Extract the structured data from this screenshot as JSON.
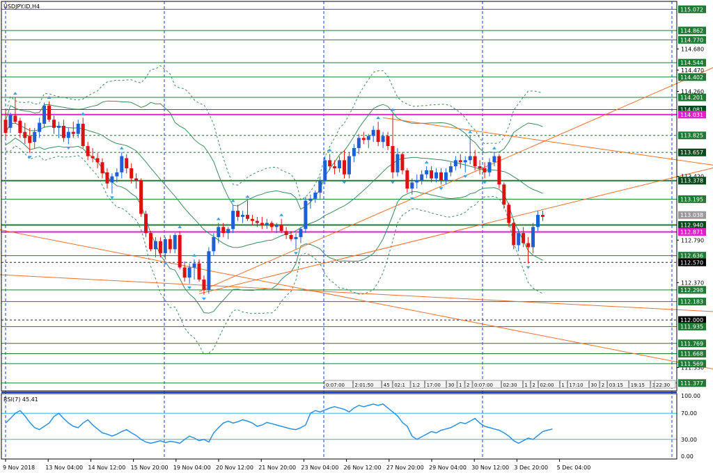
{
  "window": {
    "symbol_label": "USDJPY.ID,H4",
    "rsi_label": "RSI(7) 45.41"
  },
  "colors": {
    "bull": "#1f5fd6",
    "bear": "#dd1111",
    "hline_green": "#1f7a34",
    "hline_magenta": "#e020c8",
    "trend_orange": "#f07028",
    "rsi_line": "#2a90e0",
    "rsi_level": "#35b5e0",
    "band": "#3a8c5a",
    "grid_vertical": "#1a3fd0",
    "fractal": "#3aa0e8"
  },
  "price_axis": {
    "min": 111.3,
    "max": 115.15,
    "ticks": [
      "115.072",
      "114.862",
      "114.770",
      "114.680",
      "114.544",
      "114.470",
      "114.402",
      "114.260",
      "114.201",
      "114.081",
      "114.031",
      "113.825",
      "113.657",
      "113.420",
      "113.378",
      "113.195",
      "113.038",
      "112.940",
      "112.871",
      "112.790",
      "112.636",
      "112.570",
      "112.370",
      "112.298",
      "112.183",
      "112.000",
      "111.935",
      "111.769",
      "111.668",
      "111.569",
      "111.530",
      "111.377"
    ],
    "boxed_labels": [
      {
        "text": "115.072",
        "style": "green"
      },
      {
        "text": "114.862",
        "style": "green"
      },
      {
        "text": "114.770",
        "style": "green"
      },
      {
        "text": "114.544",
        "style": "green"
      },
      {
        "text": "114.402",
        "style": "green"
      },
      {
        "text": "114.201",
        "style": "green"
      },
      {
        "text": "114.081",
        "style": "dark"
      },
      {
        "text": "114.031",
        "style": "magenta"
      },
      {
        "text": "113.825",
        "style": "green"
      },
      {
        "text": "113.657",
        "style": "dark"
      },
      {
        "text": "113.378",
        "style": "dark"
      },
      {
        "text": "113.195",
        "style": "green"
      },
      {
        "text": "113.038",
        "style": "grey"
      },
      {
        "text": "112.940",
        "style": "dark"
      },
      {
        "text": "112.871",
        "style": "magenta"
      },
      {
        "text": "112.636",
        "style": "green"
      },
      {
        "text": "112.570",
        "style": "black"
      },
      {
        "text": "112.298",
        "style": "green"
      },
      {
        "text": "112.183",
        "style": "green"
      },
      {
        "text": "112.000",
        "style": "black"
      },
      {
        "text": "111.935",
        "style": "green"
      },
      {
        "text": "111.769",
        "style": "green"
      },
      {
        "text": "111.668",
        "style": "green"
      },
      {
        "text": "111.569",
        "style": "green"
      },
      {
        "text": "111.377",
        "style": "green"
      }
    ],
    "plain_labels": [
      "114.680",
      "114.470",
      "114.260",
      "113.420",
      "112.790",
      "112.370",
      "111.530"
    ]
  },
  "time_axis": [
    "9 Nov 2018",
    "13 Nov 04:00",
    "14 Nov 12:00",
    "15 Nov 20:00",
    "19 Nov 04:00",
    "20 Nov 12:00",
    "21 Nov 20:00",
    "23 Nov 04:00",
    "26 Nov 12:00",
    "27 Nov 20:00",
    "29 Nov 04:00",
    "30 Nov 12:00",
    "3 Dec 20:00",
    "5 Dec 04:00"
  ],
  "rsi_axis": [
    "100.00",
    "70.00",
    "30.00",
    "0.00"
  ],
  "session_boxes": [
    "0:07:00",
    "2:01:50",
    "45",
    "02:1",
    "1:2",
    "17:00",
    "30",
    "1",
    "2",
    "0:07:00",
    "02:30",
    "1",
    "2",
    "02:00",
    "1",
    "17:10",
    "30",
    "2",
    "03:15",
    "19:15",
    "37",
    "22:30"
  ],
  "chart_data": {
    "type": "candlestick",
    "title": "USDJPY.ID,H4",
    "ylim": [
      111.3,
      115.15
    ],
    "x_labels": [
      "9 Nov 2018",
      "13 Nov 04:00",
      "14 Nov 12:00",
      "15 Nov 20:00",
      "19 Nov 04:00",
      "20 Nov 12:00",
      "21 Nov 20:00",
      "23 Nov 04:00",
      "26 Nov 12:00",
      "27 Nov 20:00",
      "29 Nov 04:00",
      "30 Nov 12:00",
      "3 Dec 20:00",
      "5 Dec 04:00"
    ],
    "candles": [
      {
        "o": 113.98,
        "h": 114.08,
        "l": 113.8,
        "c": 113.85
      },
      {
        "o": 113.9,
        "h": 114.05,
        "l": 113.85,
        "c": 114.03
      },
      {
        "o": 114.02,
        "h": 114.2,
        "l": 113.94,
        "c": 113.96
      },
      {
        "o": 113.97,
        "h": 114.0,
        "l": 113.8,
        "c": 113.85
      },
      {
        "o": 113.86,
        "h": 113.95,
        "l": 113.74,
        "c": 113.8
      },
      {
        "o": 113.82,
        "h": 113.9,
        "l": 113.65,
        "c": 113.75
      },
      {
        "o": 113.76,
        "h": 113.9,
        "l": 113.7,
        "c": 113.86
      },
      {
        "o": 113.86,
        "h": 114.0,
        "l": 113.8,
        "c": 113.95
      },
      {
        "o": 113.94,
        "h": 114.15,
        "l": 113.9,
        "c": 114.12
      },
      {
        "o": 114.12,
        "h": 114.16,
        "l": 113.96,
        "c": 113.98
      },
      {
        "o": 113.98,
        "h": 114.02,
        "l": 113.84,
        "c": 113.9
      },
      {
        "o": 113.9,
        "h": 113.96,
        "l": 113.8,
        "c": 113.92
      },
      {
        "o": 113.92,
        "h": 113.98,
        "l": 113.76,
        "c": 113.8
      },
      {
        "o": 113.8,
        "h": 113.9,
        "l": 113.74,
        "c": 113.86
      },
      {
        "o": 113.86,
        "h": 113.96,
        "l": 113.8,
        "c": 113.84
      },
      {
        "o": 113.84,
        "h": 113.98,
        "l": 113.8,
        "c": 113.94
      },
      {
        "o": 113.94,
        "h": 114.0,
        "l": 113.7,
        "c": 113.72
      },
      {
        "o": 113.72,
        "h": 113.76,
        "l": 113.58,
        "c": 113.62
      },
      {
        "o": 113.62,
        "h": 113.7,
        "l": 113.56,
        "c": 113.6
      },
      {
        "o": 113.6,
        "h": 113.65,
        "l": 113.5,
        "c": 113.56
      },
      {
        "o": 113.56,
        "h": 113.6,
        "l": 113.4,
        "c": 113.45
      },
      {
        "o": 113.46,
        "h": 113.5,
        "l": 113.3,
        "c": 113.35
      },
      {
        "o": 113.36,
        "h": 113.45,
        "l": 113.25,
        "c": 113.42
      },
      {
        "o": 113.42,
        "h": 113.5,
        "l": 113.36,
        "c": 113.46
      },
      {
        "o": 113.46,
        "h": 113.66,
        "l": 113.4,
        "c": 113.62
      },
      {
        "o": 113.6,
        "h": 113.64,
        "l": 113.45,
        "c": 113.5
      },
      {
        "o": 113.5,
        "h": 113.55,
        "l": 113.35,
        "c": 113.4
      },
      {
        "o": 113.4,
        "h": 113.45,
        "l": 113.3,
        "c": 113.38
      },
      {
        "o": 113.38,
        "h": 113.4,
        "l": 113.02,
        "c": 113.05
      },
      {
        "o": 113.05,
        "h": 113.08,
        "l": 112.82,
        "c": 112.86
      },
      {
        "o": 112.86,
        "h": 112.88,
        "l": 112.68,
        "c": 112.7
      },
      {
        "o": 112.7,
        "h": 112.82,
        "l": 112.62,
        "c": 112.78
      },
      {
        "o": 112.78,
        "h": 112.82,
        "l": 112.62,
        "c": 112.66
      },
      {
        "o": 112.66,
        "h": 112.82,
        "l": 112.6,
        "c": 112.8
      },
      {
        "o": 112.8,
        "h": 112.84,
        "l": 112.66,
        "c": 112.7
      },
      {
        "o": 112.7,
        "h": 112.86,
        "l": 112.66,
        "c": 112.84
      },
      {
        "o": 112.84,
        "h": 112.88,
        "l": 112.5,
        "c": 112.52
      },
      {
        "o": 112.52,
        "h": 112.58,
        "l": 112.38,
        "c": 112.42
      },
      {
        "o": 112.42,
        "h": 112.56,
        "l": 112.36,
        "c": 112.52
      },
      {
        "o": 112.52,
        "h": 112.6,
        "l": 112.4,
        "c": 112.56
      },
      {
        "o": 112.56,
        "h": 112.6,
        "l": 112.38,
        "c": 112.4
      },
      {
        "o": 112.4,
        "h": 112.44,
        "l": 112.25,
        "c": 112.3
      },
      {
        "o": 112.3,
        "h": 112.72,
        "l": 112.26,
        "c": 112.68
      },
      {
        "o": 112.68,
        "h": 112.86,
        "l": 112.64,
        "c": 112.82
      },
      {
        "o": 112.82,
        "h": 112.96,
        "l": 112.76,
        "c": 112.92
      },
      {
        "o": 112.92,
        "h": 112.96,
        "l": 112.82,
        "c": 112.86
      },
      {
        "o": 112.86,
        "h": 112.92,
        "l": 112.8,
        "c": 112.9
      },
      {
        "o": 112.9,
        "h": 113.14,
        "l": 112.86,
        "c": 113.08
      },
      {
        "o": 113.08,
        "h": 113.14,
        "l": 112.98,
        "c": 113.02
      },
      {
        "o": 113.02,
        "h": 113.08,
        "l": 112.96,
        "c": 113.04
      },
      {
        "o": 113.04,
        "h": 113.18,
        "l": 112.98,
        "c": 113.0
      },
      {
        "o": 113.0,
        "h": 113.04,
        "l": 112.94,
        "c": 112.98
      },
      {
        "o": 112.98,
        "h": 113.02,
        "l": 112.92,
        "c": 112.96
      },
      {
        "o": 112.96,
        "h": 113.02,
        "l": 112.9,
        "c": 112.94
      },
      {
        "o": 112.94,
        "h": 113.0,
        "l": 112.9,
        "c": 112.96
      },
      {
        "o": 112.96,
        "h": 112.98,
        "l": 112.88,
        "c": 112.92
      },
      {
        "o": 112.92,
        "h": 112.96,
        "l": 112.86,
        "c": 112.94
      },
      {
        "o": 112.94,
        "h": 113.0,
        "l": 112.86,
        "c": 112.88
      },
      {
        "o": 112.88,
        "h": 112.92,
        "l": 112.8,
        "c": 112.84
      },
      {
        "o": 112.84,
        "h": 112.88,
        "l": 112.78,
        "c": 112.8
      },
      {
        "o": 112.8,
        "h": 112.86,
        "l": 112.7,
        "c": 112.82
      },
      {
        "o": 112.82,
        "h": 112.92,
        "l": 112.76,
        "c": 112.9
      },
      {
        "o": 112.9,
        "h": 113.22,
        "l": 112.86,
        "c": 113.18
      },
      {
        "o": 113.18,
        "h": 113.24,
        "l": 113.1,
        "c": 113.2
      },
      {
        "o": 113.2,
        "h": 113.28,
        "l": 113.16,
        "c": 113.26
      },
      {
        "o": 113.26,
        "h": 113.42,
        "l": 113.2,
        "c": 113.38
      },
      {
        "o": 113.38,
        "h": 113.62,
        "l": 113.34,
        "c": 113.58
      },
      {
        "o": 113.58,
        "h": 113.64,
        "l": 113.48,
        "c": 113.52
      },
      {
        "o": 113.52,
        "h": 113.58,
        "l": 113.44,
        "c": 113.5
      },
      {
        "o": 113.5,
        "h": 113.62,
        "l": 113.46,
        "c": 113.58
      },
      {
        "o": 113.58,
        "h": 113.68,
        "l": 113.4,
        "c": 113.44
      },
      {
        "o": 113.44,
        "h": 113.66,
        "l": 113.4,
        "c": 113.62
      },
      {
        "o": 113.62,
        "h": 113.74,
        "l": 113.56,
        "c": 113.7
      },
      {
        "o": 113.7,
        "h": 113.84,
        "l": 113.64,
        "c": 113.8
      },
      {
        "o": 113.8,
        "h": 113.86,
        "l": 113.74,
        "c": 113.78
      },
      {
        "o": 113.78,
        "h": 113.84,
        "l": 113.7,
        "c": 113.82
      },
      {
        "o": 113.82,
        "h": 113.92,
        "l": 113.76,
        "c": 113.88
      },
      {
        "o": 113.88,
        "h": 113.96,
        "l": 113.72,
        "c": 113.76
      },
      {
        "o": 113.76,
        "h": 113.86,
        "l": 113.7,
        "c": 113.82
      },
      {
        "o": 113.82,
        "h": 113.86,
        "l": 113.68,
        "c": 113.72
      },
      {
        "o": 113.72,
        "h": 114.04,
        "l": 113.4,
        "c": 113.46
      },
      {
        "o": 113.46,
        "h": 113.7,
        "l": 113.42,
        "c": 113.64
      },
      {
        "o": 113.64,
        "h": 113.66,
        "l": 113.44,
        "c": 113.48
      },
      {
        "o": 113.48,
        "h": 113.5,
        "l": 113.26,
        "c": 113.3
      },
      {
        "o": 113.3,
        "h": 113.4,
        "l": 113.24,
        "c": 113.36
      },
      {
        "o": 113.36,
        "h": 113.44,
        "l": 113.3,
        "c": 113.38
      },
      {
        "o": 113.38,
        "h": 113.48,
        "l": 113.34,
        "c": 113.44
      },
      {
        "o": 113.44,
        "h": 113.52,
        "l": 113.4,
        "c": 113.48
      },
      {
        "o": 113.48,
        "h": 113.52,
        "l": 113.36,
        "c": 113.4
      },
      {
        "o": 113.4,
        "h": 113.5,
        "l": 113.36,
        "c": 113.46
      },
      {
        "o": 113.46,
        "h": 113.5,
        "l": 113.34,
        "c": 113.38
      },
      {
        "o": 113.38,
        "h": 113.5,
        "l": 113.34,
        "c": 113.46
      },
      {
        "o": 113.46,
        "h": 113.56,
        "l": 113.42,
        "c": 113.52
      },
      {
        "o": 113.52,
        "h": 113.62,
        "l": 113.48,
        "c": 113.58
      },
      {
        "o": 113.58,
        "h": 113.64,
        "l": 113.5,
        "c": 113.56
      },
      {
        "o": 113.56,
        "h": 113.62,
        "l": 113.46,
        "c": 113.58
      },
      {
        "o": 113.58,
        "h": 113.82,
        "l": 113.54,
        "c": 113.62
      },
      {
        "o": 113.62,
        "h": 113.68,
        "l": 113.48,
        "c": 113.52
      },
      {
        "o": 113.52,
        "h": 113.58,
        "l": 113.44,
        "c": 113.5
      },
      {
        "o": 113.5,
        "h": 113.56,
        "l": 113.4,
        "c": 113.46
      },
      {
        "o": 113.46,
        "h": 113.6,
        "l": 113.42,
        "c": 113.56
      },
      {
        "o": 113.56,
        "h": 113.66,
        "l": 113.52,
        "c": 113.62
      },
      {
        "o": 113.62,
        "h": 113.64,
        "l": 113.3,
        "c": 113.34
      },
      {
        "o": 113.34,
        "h": 113.36,
        "l": 113.1,
        "c": 113.14
      },
      {
        "o": 113.14,
        "h": 113.16,
        "l": 112.92,
        "c": 112.96
      },
      {
        "o": 112.96,
        "h": 113.0,
        "l": 112.7,
        "c": 112.74
      },
      {
        "o": 112.74,
        "h": 112.9,
        "l": 112.68,
        "c": 112.86
      },
      {
        "o": 112.86,
        "h": 112.92,
        "l": 112.72,
        "c": 112.76
      },
      {
        "o": 112.76,
        "h": 112.82,
        "l": 112.56,
        "c": 112.72
      },
      {
        "o": 112.72,
        "h": 112.96,
        "l": 112.66,
        "c": 112.92
      },
      {
        "o": 112.92,
        "h": 113.08,
        "l": 112.88,
        "c": 113.04
      },
      {
        "o": 113.04,
        "h": 113.08,
        "l": 112.98,
        "c": 113.02
      }
    ],
    "horizontal_levels": [
      {
        "price": 115.072,
        "style": "green"
      },
      {
        "price": 114.862,
        "style": "green"
      },
      {
        "price": 114.77,
        "style": "green"
      },
      {
        "price": 114.544,
        "style": "green"
      },
      {
        "price": 114.402,
        "style": "green"
      },
      {
        "price": 114.201,
        "style": "green"
      },
      {
        "price": 114.081,
        "style": "green"
      },
      {
        "price": 114.031,
        "style": "magenta"
      },
      {
        "price": 113.825,
        "style": "dashed"
      },
      {
        "price": 113.657,
        "style": "dashed"
      },
      {
        "price": 113.378,
        "style": "green-bold"
      },
      {
        "price": 113.195,
        "style": "green"
      },
      {
        "price": 112.94,
        "style": "green-bold"
      },
      {
        "price": 112.871,
        "style": "magenta"
      },
      {
        "price": 112.636,
        "style": "green"
      },
      {
        "price": 112.57,
        "style": "dashed-black"
      },
      {
        "price": 112.298,
        "style": "green"
      },
      {
        "price": 112.183,
        "style": "green"
      },
      {
        "price": 112.0,
        "style": "dashed-black"
      },
      {
        "price": 111.935,
        "style": "green"
      },
      {
        "price": 111.769,
        "style": "green"
      },
      {
        "price": 111.668,
        "style": "green"
      },
      {
        "price": 111.569,
        "style": "green"
      },
      {
        "price": 111.377,
        "style": "green"
      }
    ],
    "trendlines": [
      {
        "from": {
          "bar": -2,
          "price": 112.9
        },
        "to": {
          "bar": 180,
          "price": 111.2
        }
      },
      {
        "from": {
          "bar": -2,
          "price": 112.45
        },
        "to": {
          "bar": 180,
          "price": 112.0
        }
      },
      {
        "from": {
          "bar": 40,
          "price": 112.28
        },
        "to": {
          "bar": 180,
          "price": 115.2
        }
      },
      {
        "from": {
          "bar": 40,
          "price": 112.26
        },
        "to": {
          "bar": 180,
          "price": 113.9
        }
      },
      {
        "from": {
          "bar": 78,
          "price": 114.0
        },
        "to": {
          "bar": 180,
          "price": 113.3
        }
      }
    ],
    "rsi": {
      "name": "RSI(7)",
      "last_value": 45.41,
      "ylim": [
        0,
        100
      ],
      "levels": [
        70,
        30
      ],
      "values": [
        55,
        62,
        70,
        74,
        66,
        56,
        48,
        45,
        50,
        55,
        65,
        70,
        62,
        55,
        50,
        48,
        55,
        60,
        52,
        46,
        40,
        38,
        35,
        38,
        42,
        45,
        40,
        36,
        30,
        26,
        24,
        26,
        28,
        25,
        27,
        26,
        24,
        30,
        35,
        32,
        28,
        30,
        26,
        40,
        48,
        55,
        58,
        55,
        57,
        60,
        58,
        55,
        50,
        52,
        56,
        54,
        52,
        50,
        48,
        46,
        45,
        48,
        52,
        70,
        74,
        72,
        75,
        78,
        80,
        78,
        76,
        72,
        78,
        82,
        80,
        82,
        84,
        82,
        84,
        78,
        72,
        66,
        56,
        50,
        35,
        30,
        34,
        38,
        42,
        40,
        44,
        46,
        48,
        52,
        56,
        54,
        58,
        62,
        55,
        50,
        48,
        46,
        44,
        40,
        35,
        28,
        24,
        28,
        32,
        30,
        36,
        42,
        44,
        46
      ]
    }
  }
}
